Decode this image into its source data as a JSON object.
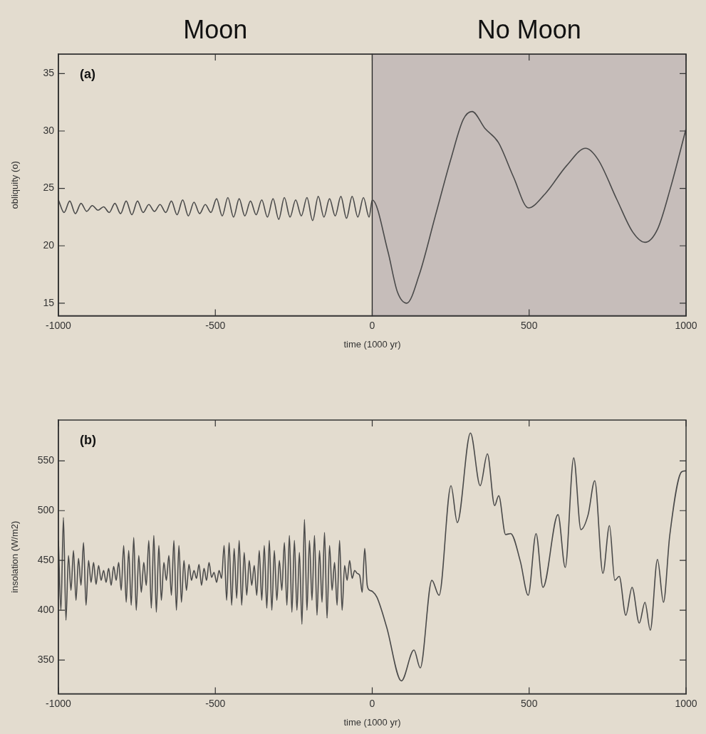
{
  "chart_data": [
    {
      "type": "line",
      "xlabel": "time (1000 yr)",
      "ylabel": "obliquity (o)",
      "annotations": [
        "(a)"
      ],
      "xlim": [
        -1000,
        1000
      ],
      "xticks": [
        -1000,
        -500,
        0,
        500,
        1000
      ],
      "ylim": [
        13.9,
        36.7
      ],
      "yticks": [
        15,
        20,
        25,
        30,
        35
      ],
      "grid": false,
      "legend": false,
      "marker": "none",
      "line_style": "solid",
      "bands": [
        {
          "axis": "x",
          "from": -1000,
          "to": 0,
          "label": "Moon",
          "color": "#e3dccf"
        },
        {
          "axis": "x",
          "from": 0,
          "to": 1000,
          "label": "No Moon",
          "color": "#c6bdba"
        }
      ],
      "series": [
        {
          "color": "#4a4a4a",
          "x": [
            -1000,
            -982,
            -964,
            -946,
            -928,
            -910,
            -892,
            -874,
            -856,
            -838,
            -820,
            -802,
            -784,
            -766,
            -748,
            -730,
            -712,
            -694,
            -676,
            -658,
            -640,
            -622,
            -604,
            -586,
            -568,
            -550,
            -532,
            -514,
            -496,
            -478,
            -460,
            -442,
            -424,
            -406,
            -388,
            -370,
            -352,
            -334,
            -316,
            -298,
            -280,
            -262,
            -244,
            -226,
            -208,
            -190,
            -172,
            -154,
            -136,
            -118,
            -100,
            -82,
            -64,
            -46,
            -28,
            -10,
            0,
            50,
            80,
            110,
            150,
            200,
            250,
            290,
            318,
            360,
            402,
            450,
            498,
            550,
            620,
            680,
            720,
            780,
            830,
            869,
            910,
            950,
            1000
          ],
          "values": [
            24.0,
            22.9,
            23.9,
            22.8,
            23.7,
            23.0,
            23.5,
            23.1,
            23.4,
            22.9,
            23.7,
            22.8,
            23.9,
            22.7,
            23.9,
            22.9,
            23.6,
            23.0,
            23.6,
            22.9,
            23.9,
            22.7,
            24.0,
            22.6,
            23.8,
            22.8,
            23.6,
            22.9,
            24.1,
            22.6,
            24.2,
            22.5,
            24.1,
            22.6,
            23.9,
            22.7,
            24.0,
            22.5,
            24.1,
            22.3,
            24.2,
            22.5,
            24.0,
            22.6,
            24.2,
            22.2,
            24.3,
            22.5,
            24.1,
            22.6,
            24.3,
            22.4,
            24.3,
            22.5,
            24.2,
            22.5,
            24.0,
            19.5,
            16.0,
            15.0,
            17.5,
            22.5,
            27.5,
            31.0,
            31.7,
            30.2,
            29.0,
            26.0,
            23.3,
            24.5,
            27.0,
            28.5,
            27.5,
            24.0,
            21.2,
            20.3,
            21.5,
            25.0,
            30.2
          ]
        }
      ]
    },
    {
      "type": "line",
      "xlabel": "time (1000 yr)",
      "ylabel": "insolation (W/m2)",
      "annotations": [
        "(b)"
      ],
      "xlim": [
        -1000,
        1000
      ],
      "xticks": [
        -1000,
        -500,
        0,
        500,
        1000
      ],
      "ylim": [
        316,
        591
      ],
      "yticks": [
        350,
        400,
        450,
        500,
        550
      ],
      "grid": false,
      "legend": false,
      "marker": "none",
      "line_style": "solid",
      "series": [
        {
          "color": "#4a4a4a",
          "x": [
            -1000,
            -992,
            -984,
            -976,
            -968,
            -960,
            -952,
            -944,
            -936,
            -928,
            -920,
            -912,
            -904,
            -896,
            -888,
            -880,
            -872,
            -864,
            -856,
            -848,
            -840,
            -832,
            -824,
            -816,
            -808,
            -800,
            -792,
            -784,
            -776,
            -768,
            -760,
            -752,
            -744,
            -736,
            -728,
            -720,
            -712,
            -704,
            -696,
            -688,
            -680,
            -672,
            -664,
            -656,
            -648,
            -640,
            -632,
            -624,
            -616,
            -608,
            -600,
            -592,
            -584,
            -576,
            -568,
            -560,
            -552,
            -544,
            -536,
            -528,
            -520,
            -512,
            -504,
            -496,
            -488,
            -480,
            -472,
            -464,
            -456,
            -448,
            -440,
            -432,
            -424,
            -416,
            -408,
            -400,
            -392,
            -384,
            -376,
            -368,
            -360,
            -352,
            -344,
            -336,
            -328,
            -320,
            -312,
            -304,
            -296,
            -288,
            -280,
            -272,
            -264,
            -256,
            -248,
            -240,
            -232,
            -224,
            -216,
            -208,
            -200,
            -192,
            -184,
            -176,
            -168,
            -160,
            -152,
            -144,
            -136,
            -128,
            -120,
            -112,
            -104,
            -96,
            -88,
            -80,
            -72,
            -64,
            -56,
            -48,
            -40,
            -32,
            -24,
            -16,
            -8,
            0,
            15,
            46,
            93,
            133,
            153,
            190,
            213,
            251,
            271,
            313,
            344,
            367,
            390,
            403,
            425,
            441,
            472,
            497,
            522,
            544,
            592,
            615,
            642,
            665,
            688,
            709,
            735,
            756,
            773,
            787,
            808,
            828,
            851,
            869,
            886,
            909,
            928,
            948,
            986,
            1000
          ],
          "values": [
            470,
            400,
            493,
            390,
            455,
            420,
            460,
            410,
            452,
            425,
            468,
            405,
            450,
            428,
            448,
            426,
            445,
            430,
            440,
            428,
            442,
            425,
            444,
            430,
            448,
            420,
            465,
            408,
            460,
            405,
            473,
            400,
            455,
            418,
            448,
            425,
            470,
            402,
            475,
            398,
            465,
            410,
            448,
            430,
            455,
            415,
            470,
            400,
            465,
            408,
            450,
            420,
            446,
            430,
            440,
            432,
            446,
            425,
            442,
            430,
            448,
            433,
            438,
            428,
            440,
            432,
            465,
            410,
            468,
            405,
            462,
            412,
            470,
            405,
            458,
            415,
            450,
            425,
            445,
            415,
            460,
            410,
            465,
            402,
            470,
            400,
            460,
            410,
            450,
            420,
            468,
            405,
            475,
            398,
            470,
            400,
            458,
            386,
            491,
            400,
            470,
            410,
            475,
            395,
            460,
            408,
            478,
            392,
            465,
            420,
            448,
            405,
            470,
            400,
            445,
            430,
            450,
            432,
            440,
            437,
            435,
            418,
            462,
            425,
            420,
            419,
            413,
            383,
            329,
            360,
            342,
            430,
            415,
            525,
            488,
            578,
            525,
            557,
            505,
            515,
            476,
            477,
            449,
            415,
            477,
            423,
            496,
            443,
            553,
            481,
            496,
            530,
            437,
            485,
            430,
            434,
            395,
            423,
            387,
            408,
            380,
            451,
            408,
            475,
            539,
            540
          ]
        }
      ]
    }
  ]
}
